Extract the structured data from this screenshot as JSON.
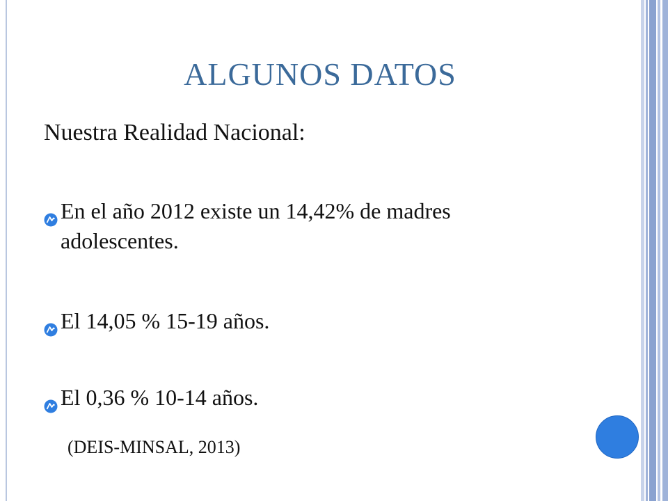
{
  "slide": {
    "title": "ALGUNOS DATOS",
    "subtitle": "Nuestra Realidad Nacional:",
    "bullets": [
      {
        "text": "En el año 2012 existe un 14,42% de madres adolescentes."
      },
      {
        "text": "El 14,05 % 15-19 años."
      },
      {
        "text": "El 0,36 % 10-14 años."
      }
    ],
    "source": "(DEIS-MINSAL, 2013)"
  },
  "theme": {
    "title_color": "#3b6a9a",
    "accent_blue": "#2f7ee0",
    "band_colors": [
      "#c7d3ea",
      "#9fb3d9",
      "#8aa2d0",
      "#b3c3e3"
    ]
  },
  "icons": {
    "bullet": "bullet-arrow-icon",
    "decor_circle": "decorative-circle"
  }
}
